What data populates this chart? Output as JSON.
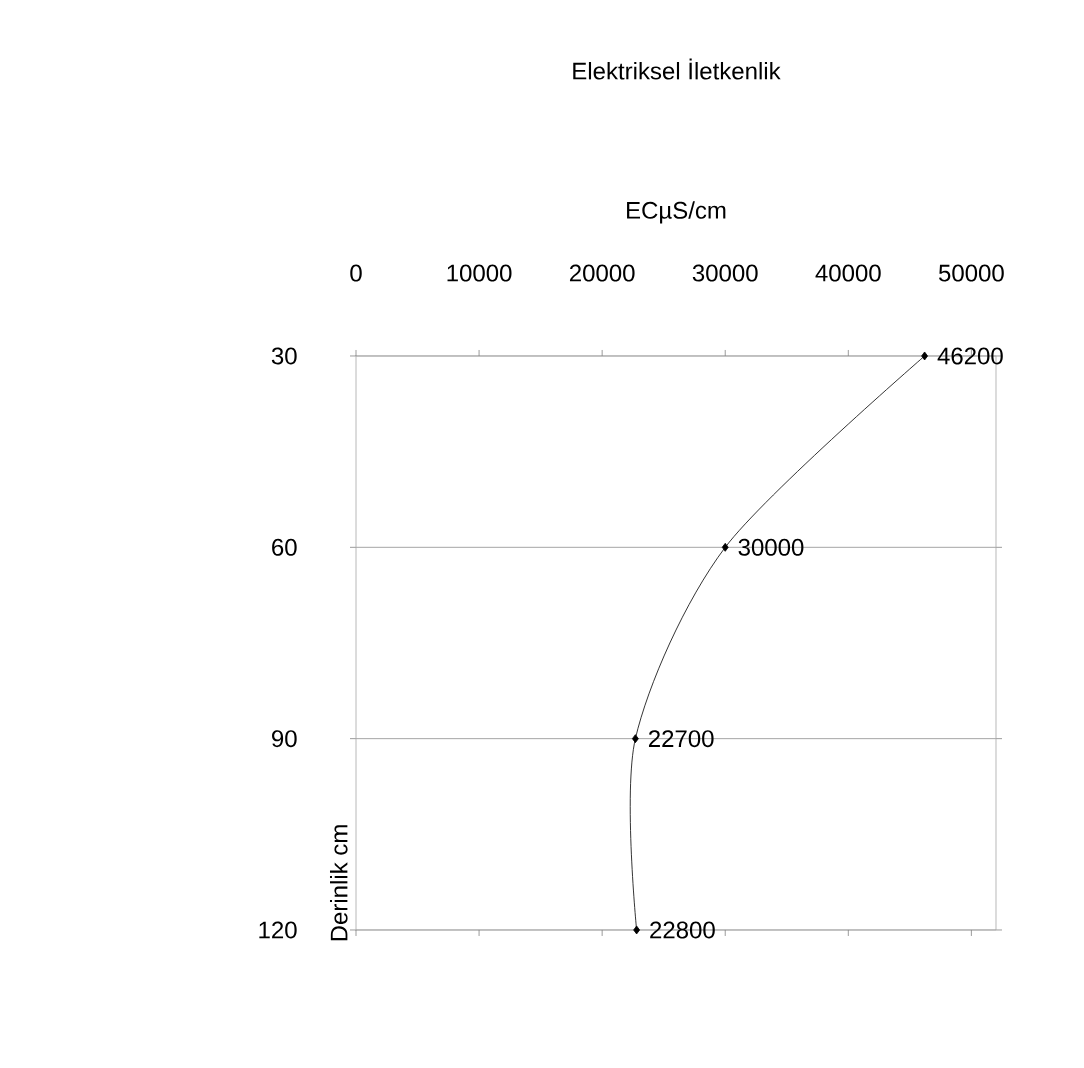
{
  "chart_data": {
    "type": "line",
    "orientation": "horizontal",
    "title": "Elektriksel İletkenlik",
    "xlabel": "ECµS/cm",
    "ylabel": "Derinlik cm",
    "categories": [
      "30",
      "60",
      "90",
      "120"
    ],
    "xlim": [
      0,
      52000
    ],
    "xticks": [
      0,
      10000,
      20000,
      30000,
      40000,
      50000
    ],
    "grid": "y",
    "marker": "diamond",
    "line_style": "solid",
    "data_labels": true,
    "series": [
      {
        "color": "#000000",
        "values": [
          46200,
          30000,
          22700,
          22800
        ]
      }
    ]
  }
}
